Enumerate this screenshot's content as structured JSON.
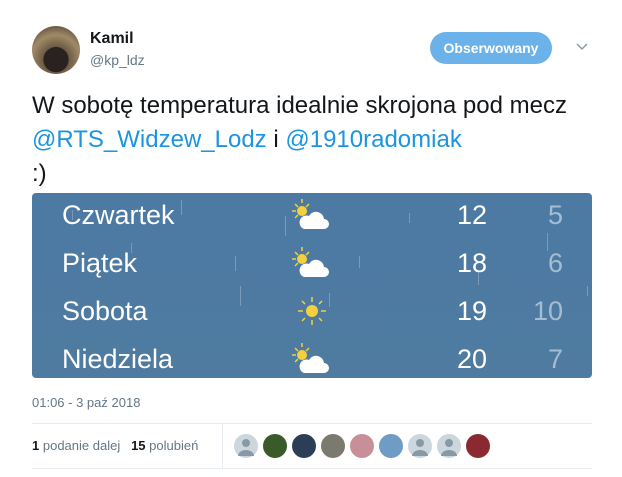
{
  "author": {
    "name": "Kamil",
    "handle": "@kp_ldz"
  },
  "follow_button": "Obserwowany",
  "tweet": {
    "text_1": "W sobotę temperatura idealnie skrojona pod mecz ",
    "mention_1": "@RTS_Widzew_Lodz",
    "text_2": " i ",
    "mention_2": "@1910radomiak",
    "text_3": " :)"
  },
  "forecast": [
    {
      "day": "Czwartek",
      "icon": "partly-cloudy-icon",
      "high": "12",
      "low": "5"
    },
    {
      "day": "Piątek",
      "icon": "partly-cloudy-icon",
      "high": "18",
      "low": "6"
    },
    {
      "day": "Sobota",
      "icon": "sun-icon",
      "high": "19",
      "low": "10"
    },
    {
      "day": "Niedziela",
      "icon": "partly-cloudy-icon",
      "high": "20",
      "low": "7"
    }
  ],
  "timestamp": "01:06 - 3 paź 2018",
  "stats": {
    "retweets": "1",
    "retweets_label": "podanie dalej",
    "likes": "15",
    "likes_label": "polubień"
  },
  "likers": [
    "default",
    "photo",
    "photo",
    "photo",
    "photo",
    "photo",
    "default",
    "default",
    "photo"
  ],
  "colors": {
    "link": "#1b95e0",
    "button": "#6bb1ea",
    "media_bg": "#4e7aa2"
  }
}
